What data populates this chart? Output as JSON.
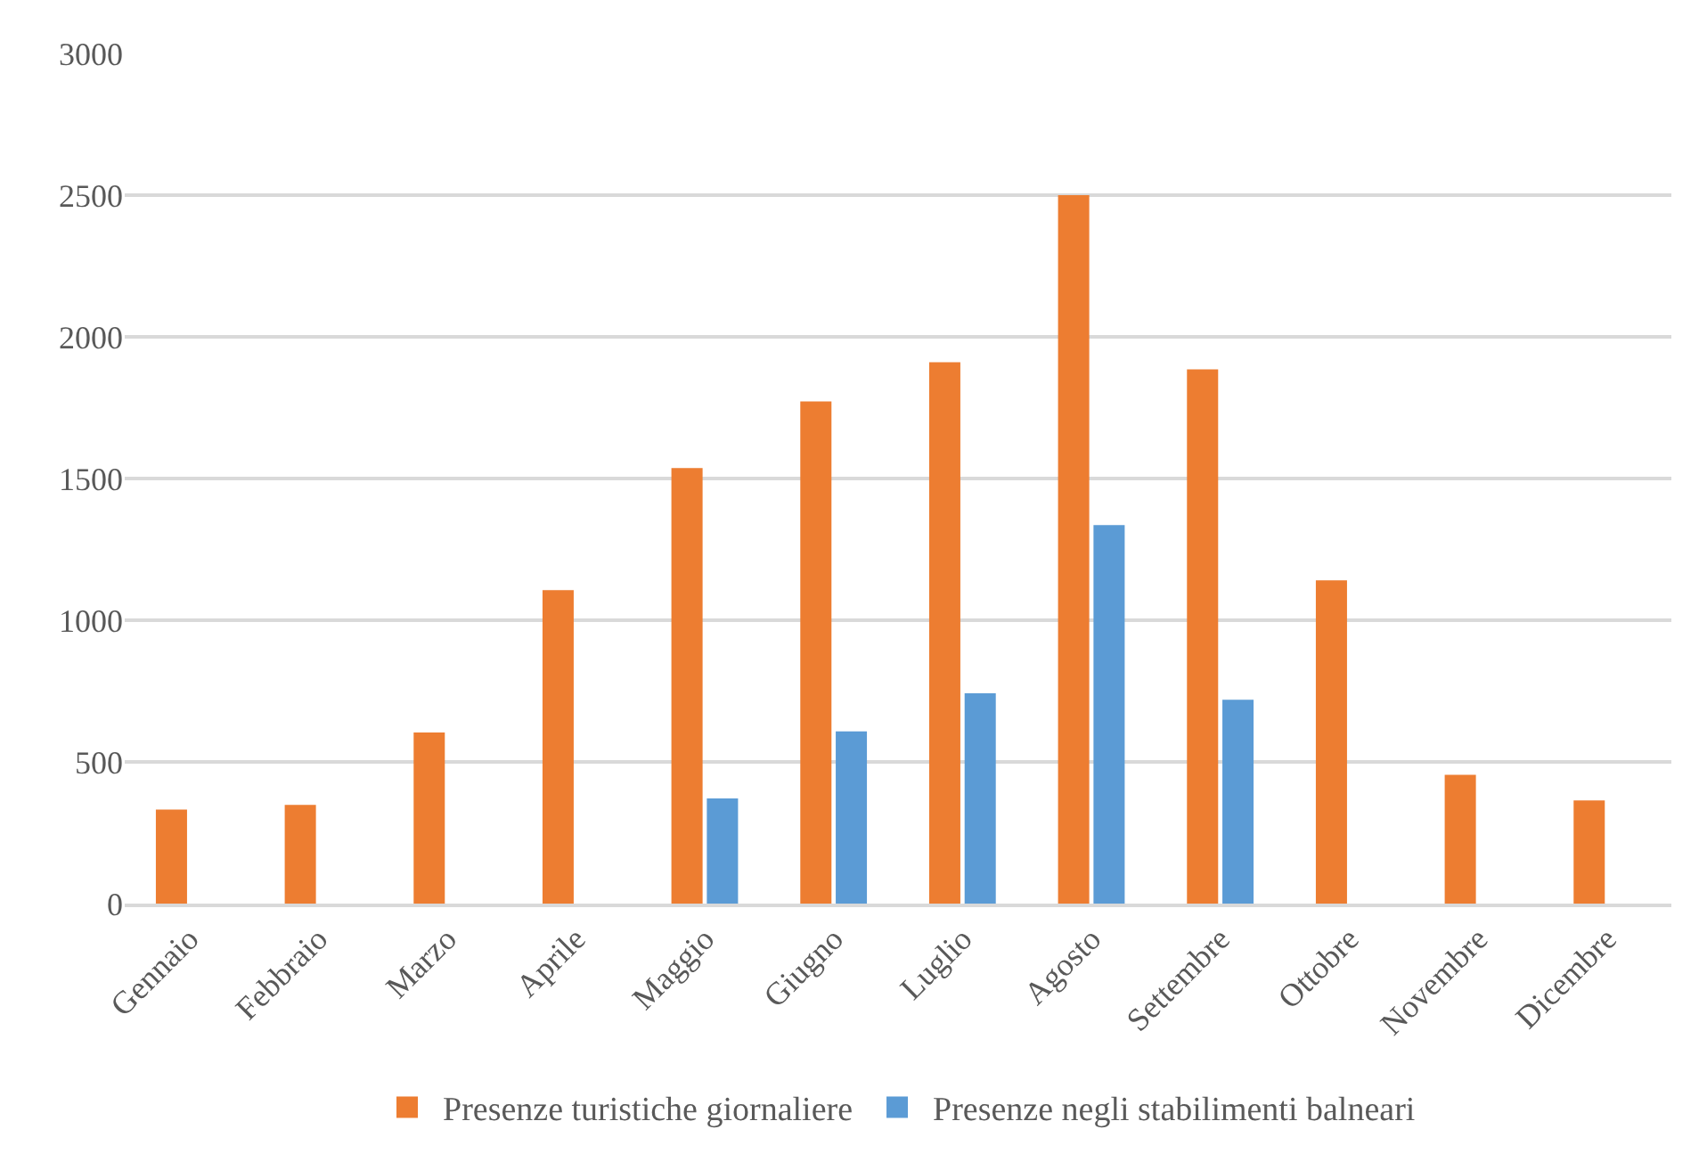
{
  "chart_data": {
    "type": "bar",
    "categories": [
      "Gennaio",
      "Febbraio",
      "Marzo",
      "Aprile",
      "Maggio",
      "Giugno",
      "Luglio",
      "Agosto",
      "Settembre",
      "Ottobre",
      "Novembre",
      "Dicembre"
    ],
    "series": [
      {
        "name": "Presenze turistiche giornaliere",
        "color": "#ed7d31",
        "values": [
          332,
          348,
          604,
          1106,
          1537,
          1772,
          1910,
          2500,
          1885,
          1141,
          454,
          364
        ]
      },
      {
        "name": "Presenze negli stabilimenti balneari",
        "color": "#5b9bd5",
        "values": [
          null,
          null,
          null,
          null,
          371,
          608,
          742,
          1336,
          719,
          null,
          null,
          null
        ]
      }
    ],
    "ylim": [
      0,
      3000
    ],
    "yticks": [
      0,
      500,
      1000,
      1500,
      2000,
      2500,
      3000
    ],
    "grid": "y",
    "legend": "bottom"
  }
}
